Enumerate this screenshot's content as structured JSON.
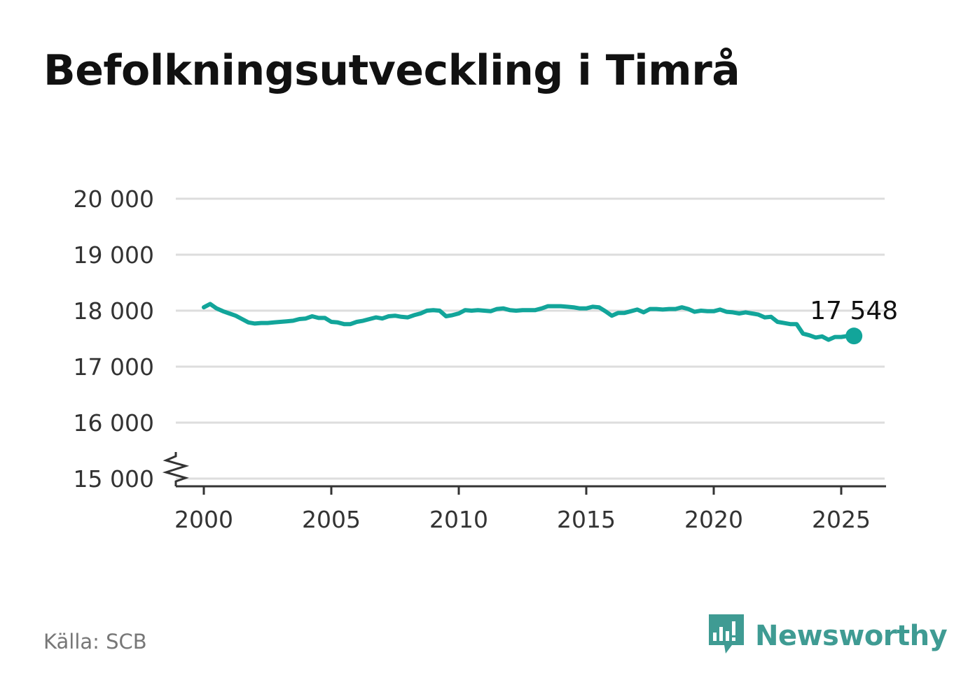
{
  "title": "Befolkningsutveckling i Timrå",
  "source": "Källa: SCB",
  "brand": {
    "name": "Newsworthy",
    "icon": "newsworthy-logo-icon",
    "color": "#3f9b93"
  },
  "chart_data": {
    "type": "line",
    "title": "Befolkningsutveckling i Timrå",
    "xlabel": "",
    "ylabel": "",
    "xlim": [
      1999.2,
      2026.7
    ],
    "ylim": [
      15000,
      20000
    ],
    "y_axis_break": true,
    "grid": true,
    "legend": "none",
    "x_ticks": [
      2000,
      2005,
      2010,
      2015,
      2020,
      2025
    ],
    "x_tick_labels": [
      "2000",
      "2005",
      "2010",
      "2015",
      "2020",
      "2025"
    ],
    "y_ticks": [
      15000,
      16000,
      17000,
      18000,
      19000,
      20000
    ],
    "y_tick_labels": [
      "15 000",
      "16 000",
      "17 000",
      "18 000",
      "19 000",
      "20 000"
    ],
    "line_color": "#12a59a",
    "grid_color": "#dddddd",
    "series": [
      {
        "name": "",
        "x": [
          2000.0,
          2000.25,
          2000.5,
          2000.75,
          2001.0,
          2001.25,
          2001.5,
          2001.75,
          2002.0,
          2002.25,
          2002.5,
          2002.75,
          2003.0,
          2003.25,
          2003.5,
          2003.75,
          2004.0,
          2004.25,
          2004.5,
          2004.75,
          2005.0,
          2005.25,
          2005.5,
          2005.75,
          2006.0,
          2006.25,
          2006.5,
          2006.75,
          2007.0,
          2007.25,
          2007.5,
          2007.75,
          2008.0,
          2008.25,
          2008.5,
          2008.75,
          2009.0,
          2009.25,
          2009.5,
          2009.75,
          2010.0,
          2010.25,
          2010.5,
          2010.75,
          2011.0,
          2011.25,
          2011.5,
          2011.75,
          2012.0,
          2012.25,
          2012.5,
          2012.75,
          2013.0,
          2013.25,
          2013.5,
          2013.75,
          2014.0,
          2014.25,
          2014.5,
          2014.75,
          2015.0,
          2015.25,
          2015.5,
          2015.75,
          2016.0,
          2016.25,
          2016.5,
          2016.75,
          2017.0,
          2017.25,
          2017.5,
          2017.75,
          2018.0,
          2018.25,
          2018.5,
          2018.75,
          2019.0,
          2019.25,
          2019.5,
          2019.75,
          2020.0,
          2020.25,
          2020.5,
          2020.75,
          2021.0,
          2021.25,
          2021.5,
          2021.75,
          2022.0,
          2022.25,
          2022.5,
          2022.75,
          2023.0,
          2023.25,
          2023.5,
          2023.75,
          2024.0,
          2024.25,
          2024.5,
          2024.75,
          2025.0,
          2025.25,
          2025.5
        ],
        "values": [
          18060,
          18120,
          18040,
          17990,
          17950,
          17910,
          17850,
          17790,
          17770,
          17780,
          17780,
          17790,
          17800,
          17810,
          17820,
          17850,
          17860,
          17900,
          17870,
          17870,
          17800,
          17790,
          17760,
          17760,
          17800,
          17820,
          17850,
          17880,
          17860,
          17900,
          17910,
          17890,
          17880,
          17920,
          17950,
          18000,
          18010,
          18000,
          17900,
          17920,
          17950,
          18010,
          18000,
          18010,
          18000,
          17990,
          18030,
          18040,
          18010,
          18000,
          18010,
          18010,
          18010,
          18040,
          18080,
          18080,
          18080,
          18070,
          18060,
          18040,
          18040,
          18070,
          18060,
          17990,
          17910,
          17960,
          17960,
          17990,
          18020,
          17970,
          18030,
          18030,
          18020,
          18030,
          18030,
          18060,
          18030,
          17980,
          18000,
          17990,
          17990,
          18020,
          17980,
          17970,
          17950,
          17970,
          17950,
          17930,
          17880,
          17890,
          17800,
          17780,
          17760,
          17760,
          17590,
          17560,
          17520,
          17540,
          17480,
          17530,
          17530,
          17548,
          17548
        ]
      }
    ],
    "end_label": {
      "x": 2025.5,
      "value": 17548,
      "text": "17 548"
    }
  }
}
